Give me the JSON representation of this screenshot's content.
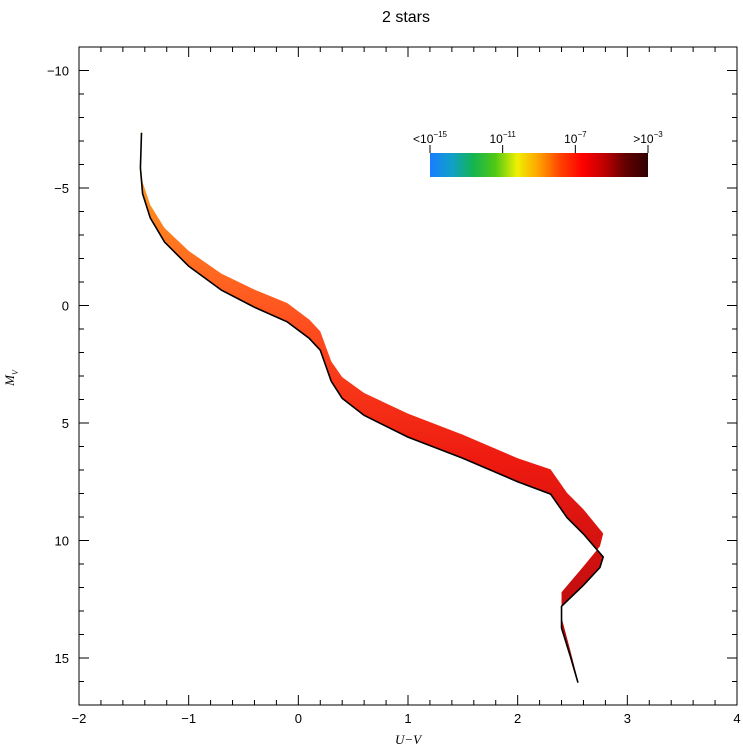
{
  "chart_data": {
    "type": "line",
    "title": "2 stars",
    "xlabel": "U−V",
    "ylabel": "M",
    "ylabel_sub": "V",
    "xlim": [
      -2,
      4
    ],
    "ylim": [
      -11,
      17
    ],
    "y_inverted": true,
    "x_ticks": [
      -2,
      -1,
      0,
      1,
      2,
      3,
      4
    ],
    "x_tick_labels": [
      "−2",
      "−1",
      "0",
      "1",
      "2",
      "3",
      "4"
    ],
    "y_ticks": [
      -10,
      -5,
      0,
      5,
      10,
      15
    ],
    "y_tick_labels": [
      "−10",
      "−5",
      "0",
      "5",
      "10",
      "15"
    ],
    "grid": false,
    "colorbar": {
      "placement": "top-right",
      "labels": [
        {
          "prefix": "<10",
          "exp": "−15"
        },
        {
          "prefix": "10",
          "exp": "−11"
        },
        {
          "prefix": "10",
          "exp": "−7"
        },
        {
          "prefix": ">10",
          "exp": "−3"
        }
      ],
      "colors": [
        "#1a7cff",
        "#10a0c8",
        "#14b450",
        "#50c814",
        "#f0f000",
        "#ffa000",
        "#ff4000",
        "#ff0000",
        "#c00000",
        "#600000",
        "#300000"
      ]
    },
    "series": [
      {
        "x": [
          -1.43,
          -1.44,
          -1.42,
          -1.35,
          -1.22,
          -1.0,
          -0.7,
          -0.4,
          -0.1,
          0.1,
          0.2,
          0.3,
          0.4,
          0.6,
          1.0,
          1.5,
          2.0,
          2.3,
          2.45,
          2.6,
          2.78,
          2.75,
          2.6,
          2.4,
          2.4,
          2.48,
          2.55
        ],
        "y": [
          -7.5,
          -6.0,
          -5.0,
          -4.0,
          -3.0,
          -2.0,
          -1.0,
          -0.3,
          0.3,
          1.0,
          1.5,
          2.8,
          3.5,
          4.2,
          5.1,
          6.0,
          7.0,
          7.5,
          8.5,
          9.2,
          10.2,
          10.7,
          11.5,
          12.5,
          13.5,
          14.8,
          16.0
        ],
        "w": [
          0.3,
          0.3,
          0.5,
          0.55,
          0.6,
          0.65,
          0.7,
          0.75,
          0.8,
          0.8,
          0.8,
          0.85,
          0.9,
          0.95,
          1.0,
          1.0,
          1.0,
          1.05,
          1.05,
          1.05,
          1.0,
          0.9,
          0.8,
          0.6,
          0.45,
          0.25,
          0.1
        ]
      }
    ]
  }
}
